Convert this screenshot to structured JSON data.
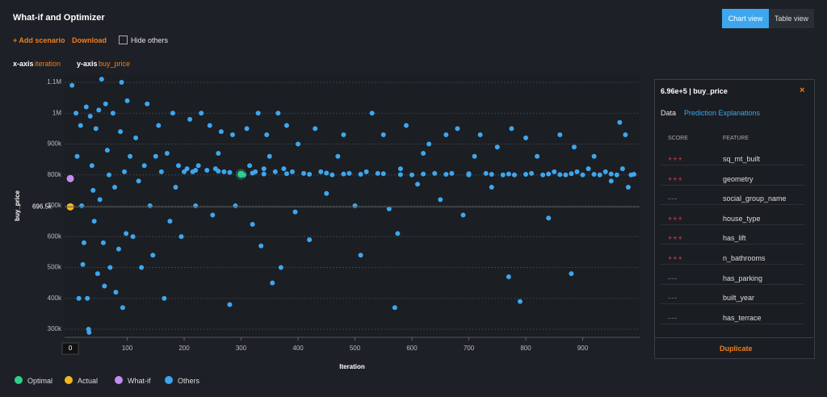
{
  "header": {
    "title": "What-if and Optimizer",
    "views": [
      "Chart view",
      "Table view"
    ],
    "actions": [
      "+ Add scenario",
      "Download"
    ],
    "hide_others": "Hide others",
    "x_axis_label": "x-axis",
    "x_axis_value": "iteration",
    "y_axis_label": "y-axis",
    "y_axis_value": "buy_price"
  },
  "panel": {
    "title": "6.96e+5 | buy_price",
    "close": "×",
    "tabs": [
      "Data",
      "Prediction Explanations"
    ],
    "columns": [
      "SCORE",
      "FEATURE"
    ],
    "rows": [
      {
        "score": "+++",
        "feature": "sq_mt_built"
      },
      {
        "score": "+++",
        "feature": "geometry"
      },
      {
        "score": "---",
        "feature": "social_group_name"
      },
      {
        "score": "+++",
        "feature": "house_type"
      },
      {
        "score": "+++",
        "feature": "has_lift"
      },
      {
        "score": "+++",
        "feature": "n_bathrooms"
      },
      {
        "score": "---",
        "feature": "has_parking"
      },
      {
        "score": "---",
        "feature": "built_year"
      },
      {
        "score": "---",
        "feature": "has_terrace"
      }
    ],
    "button": "Duplicate"
  },
  "chart_data": {
    "type": "scatter",
    "x_label": "Iteration",
    "y_label": "buy_price",
    "xlim": [
      -10,
      1000
    ],
    "xticks": [
      100,
      200,
      300,
      400,
      500,
      600,
      700,
      800,
      900
    ],
    "ylim": [
      274000,
      1126000
    ],
    "yticks": [
      {
        "value": 300000,
        "label": "300k"
      },
      {
        "value": 400000,
        "label": "400k"
      },
      {
        "value": 500000,
        "label": "500k"
      },
      {
        "value": 600000,
        "label": "600k"
      },
      {
        "value": 700000,
        "label": "700k"
      },
      {
        "value": 800000,
        "label": "800k"
      },
      {
        "value": 900000,
        "label": "900k"
      },
      {
        "value": 1000000,
        "label": "1M"
      },
      {
        "value": 1100000,
        "label": "1.1M"
      }
    ],
    "grid": true,
    "series": [
      {
        "name": "Others",
        "color": "#3ea6ee",
        "x": [
          3,
          10,
          12,
          15,
          18,
          20,
          22,
          24,
          28,
          30,
          32,
          33,
          35,
          38,
          40,
          42,
          45,
          48,
          50,
          52,
          55,
          58,
          60,
          62,
          65,
          68,
          70,
          75,
          78,
          80,
          85,
          88,
          90,
          92,
          95,
          98,
          100,
          105,
          110,
          115,
          120,
          125,
          130,
          135,
          140,
          145,
          150,
          155,
          160,
          165,
          170,
          175,
          180,
          185,
          190,
          195,
          200,
          205,
          210,
          215,
          220,
          220,
          225,
          230,
          240,
          245,
          250,
          255,
          260,
          260,
          265,
          270,
          280,
          280,
          285,
          290,
          305,
          310,
          315,
          320,
          320,
          325,
          330,
          335,
          340,
          340,
          345,
          350,
          355,
          360,
          365,
          370,
          375,
          380,
          380,
          390,
          395,
          400,
          410,
          420,
          420,
          430,
          440,
          450,
          450,
          460,
          470,
          480,
          480,
          490,
          500,
          510,
          510,
          520,
          530,
          540,
          550,
          550,
          560,
          570,
          575,
          580,
          580,
          590,
          600,
          610,
          620,
          620,
          630,
          640,
          650,
          660,
          660,
          670,
          680,
          690,
          700,
          700,
          710,
          720,
          730,
          740,
          740,
          750,
          760,
          770,
          770,
          775,
          780,
          790,
          800,
          800,
          810,
          820,
          830,
          840,
          840,
          850,
          860,
          860,
          870,
          880,
          880,
          885,
          890,
          900,
          910,
          920,
          920,
          930,
          940,
          950,
          950,
          960,
          965,
          970,
          975,
          980,
          985,
          990
        ],
        "values": [
          1090000,
          1000000,
          860000,
          400000,
          960000,
          700000,
          510000,
          580000,
          1020000,
          400000,
          300000,
          290000,
          990000,
          830000,
          750000,
          650000,
          950000,
          480000,
          1010000,
          720000,
          1110000,
          580000,
          440000,
          1030000,
          880000,
          800000,
          500000,
          1000000,
          760000,
          420000,
          560000,
          940000,
          1100000,
          370000,
          810000,
          610000,
          1040000,
          860000,
          600000,
          920000,
          780000,
          500000,
          830000,
          1030000,
          700000,
          540000,
          860000,
          960000,
          810000,
          400000,
          870000,
          650000,
          1000000,
          760000,
          830000,
          600000,
          810000,
          820000,
          980000,
          810000,
          700000,
          815000,
          830000,
          1000000,
          815000,
          960000,
          670000,
          820000,
          870000,
          812000,
          940000,
          810000,
          380000,
          808000,
          930000,
          700000,
          800000,
          950000,
          830000,
          640000,
          806000,
          810000,
          1000000,
          570000,
          820000,
          803000,
          930000,
          860000,
          450000,
          810000,
          1000000,
          500000,
          820000,
          960000,
          804000,
          810000,
          680000,
          900000,
          805000,
          590000,
          802000,
          950000,
          810000,
          740000,
          806000,
          800000,
          860000,
          930000,
          803000,
          805000,
          700000,
          540000,
          802000,
          810000,
          1000000,
          805000,
          930000,
          804000,
          690000,
          370000,
          610000,
          820000,
          801000,
          960000,
          800000,
          770000,
          870000,
          803000,
          900000,
          805000,
          720000,
          930000,
          802000,
          805000,
          950000,
          670000,
          800000,
          804000,
          860000,
          930000,
          805000,
          760000,
          802000,
          890000,
          800000,
          470000,
          803000,
          950000,
          800000,
          390000,
          920000,
          802000,
          805000,
          860000,
          800000,
          660000,
          803000,
          810000,
          930000,
          801000,
          800000,
          480000,
          804000,
          890000,
          810000,
          800000,
          820000,
          860000,
          802000,
          800000,
          810000,
          780000,
          803000,
          800000,
          970000,
          820000,
          930000,
          760000,
          800000,
          802000
        ]
      },
      {
        "name": "Optimal",
        "color": "#2dd28a",
        "x": [
          300
        ],
        "values": [
          802000
        ]
      },
      {
        "name": "Actual",
        "color": "#f2b81f",
        "x": [
          0
        ],
        "values": [
          696500
        ],
        "value_labels": [
          "696.5k"
        ]
      },
      {
        "name": "What-if",
        "color": "#c58cf0",
        "x": [
          0
        ],
        "values": [
          788000
        ]
      }
    ]
  }
}
